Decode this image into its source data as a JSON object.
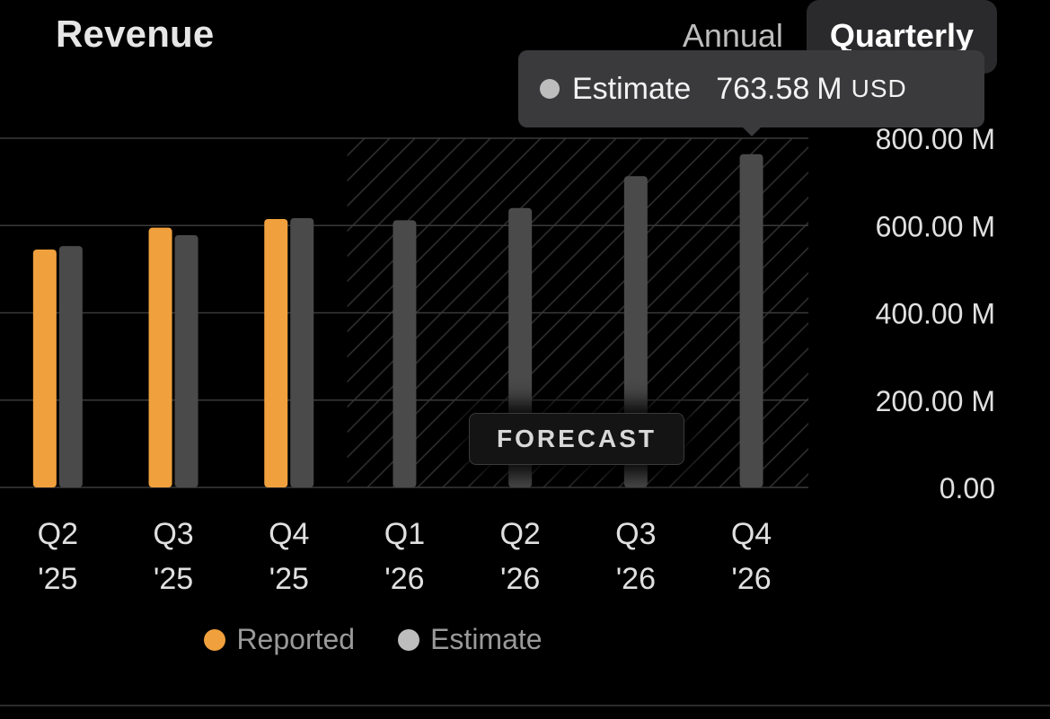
{
  "header": {
    "title": "Revenue",
    "tabs": [
      {
        "label": "Annual",
        "active": false
      },
      {
        "label": "Quarterly",
        "active": true
      }
    ]
  },
  "tooltip": {
    "series": "Estimate",
    "value": "763.58",
    "unit": "M",
    "currency": "USD"
  },
  "forecast_label": "FORECAST",
  "colors": {
    "reported": "#f0a03c",
    "estimate": "#4a4a4a",
    "estimate_legend": "#bdbdbd",
    "grid": "#3a3a3a",
    "hatch": "#2e2e2e"
  },
  "chart_data": {
    "type": "bar",
    "categories": [
      {
        "quarter": "Q2",
        "year": "'25"
      },
      {
        "quarter": "Q3",
        "year": "'25"
      },
      {
        "quarter": "Q4",
        "year": "'25"
      },
      {
        "quarter": "Q1",
        "year": "'26"
      },
      {
        "quarter": "Q2",
        "year": "'26"
      },
      {
        "quarter": "Q3",
        "year": "'26"
      },
      {
        "quarter": "Q4",
        "year": "'26"
      }
    ],
    "series": [
      {
        "name": "Reported",
        "values": [
          545,
          595,
          615,
          null,
          null,
          null,
          null
        ]
      },
      {
        "name": "Estimate",
        "values": [
          553,
          578,
          617,
          612,
          640,
          713,
          763.58
        ]
      }
    ],
    "forecast_start_index": 3,
    "y_ticks": [
      {
        "value": 0,
        "label": "0.00"
      },
      {
        "value": 200,
        "label": "200.00 M"
      },
      {
        "value": 400,
        "label": "400.00 M"
      },
      {
        "value": 600,
        "label": "600.00 M"
      },
      {
        "value": 800,
        "label": "800.00 M"
      }
    ],
    "ylim": [
      0,
      800
    ],
    "grid": true,
    "legend_position": "bottom"
  }
}
